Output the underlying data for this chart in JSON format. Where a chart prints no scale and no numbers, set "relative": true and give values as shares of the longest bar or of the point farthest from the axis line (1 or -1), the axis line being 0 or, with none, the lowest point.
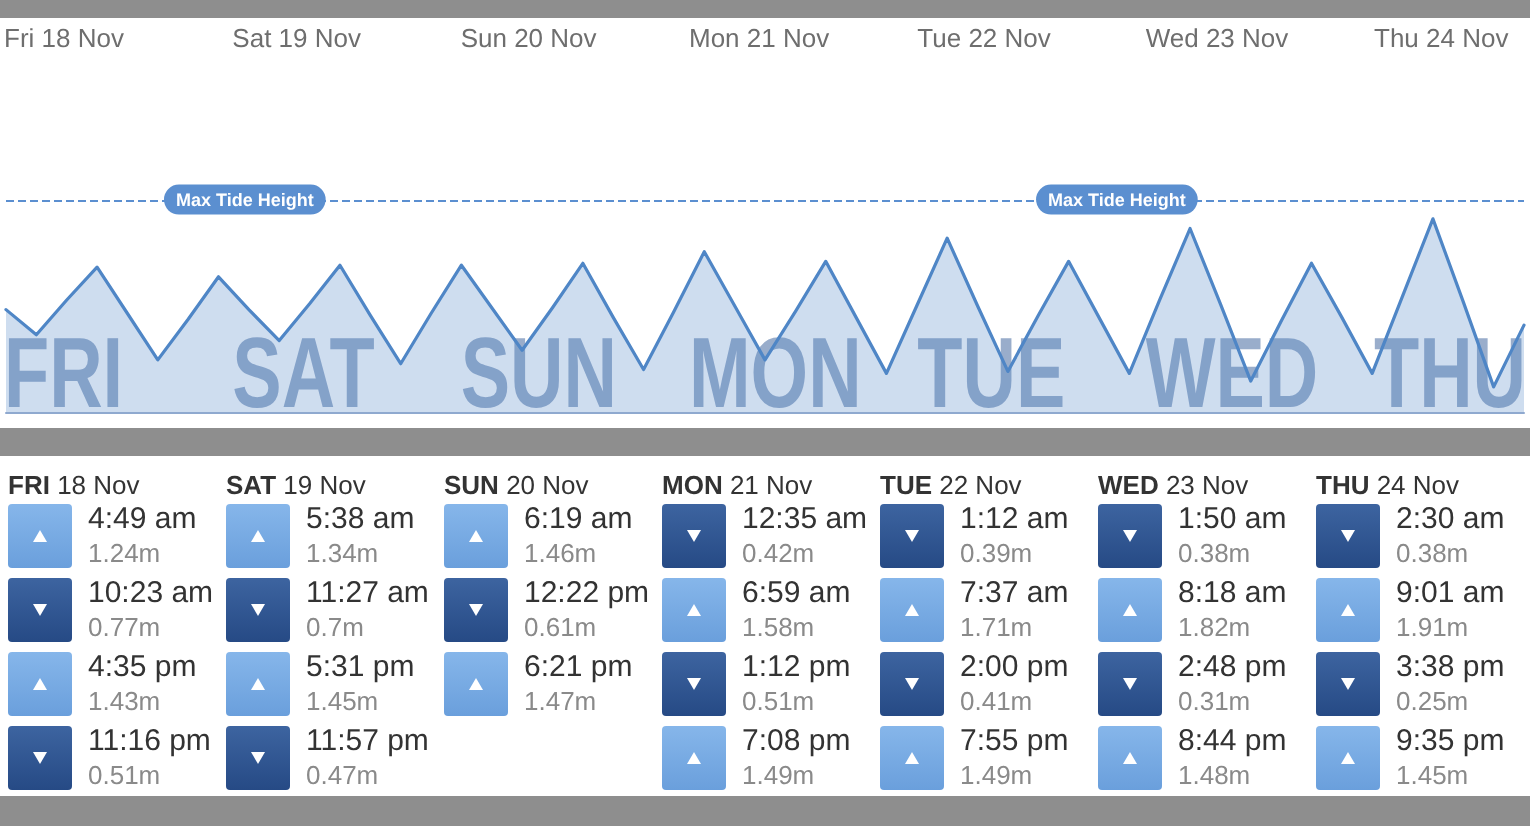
{
  "chart_data": [
    {
      "type": "area",
      "relative": true,
      "categories": [
        null,
        null,
        null,
        null,
        null,
        null,
        null,
        null,
        null,
        null,
        null,
        null,
        null,
        null,
        null,
        null,
        null,
        null,
        null,
        null,
        null,
        null,
        null,
        null,
        null,
        null,
        null,
        null,
        null,
        null,
        null,
        null,
        null,
        null,
        null,
        null,
        null,
        null,
        null,
        null,
        null,
        null,
        null,
        null,
        null,
        null,
        null,
        null,
        null,
        null,
        null
      ],
      "values": [
        0.53,
        0.4,
        0.58,
        0.75,
        0.51,
        0.27,
        0.48,
        0.7,
        0.53,
        0.37,
        0.56,
        0.76,
        0.5,
        0.25,
        0.51,
        0.76,
        0.54,
        0.32,
        0.54,
        0.77,
        0.49,
        0.22,
        0.52,
        0.83,
        0.55,
        0.27,
        0.52,
        0.78,
        0.49,
        0.2,
        0.55,
        0.9,
        0.55,
        0.21,
        0.5,
        0.78,
        0.49,
        0.2,
        0.58,
        0.95,
        0.56,
        0.16,
        0.47,
        0.77,
        0.49,
        0.2,
        0.6,
        1,
        0.57,
        0.13,
        0.45
      ],
      "color": "#4f86c6",
      "marker": "none",
      "ref_lines": [
        {
          "axis": "y",
          "value": 1.1,
          "label": "Max Tide Height",
          "line_style": "dashed",
          "color": "#5b8fd0"
        }
      ],
      "annotations": [
        "Fri 18 Nov",
        "Sat 19 Nov",
        "Sun 20 Nov",
        "Mon 21 Nov",
        "Tue 22 Nov",
        "Wed 23 Nov",
        "Thu 24 Nov",
        "FRI",
        "SAT",
        "SUN",
        "MON",
        "TUE",
        "WED",
        "THU"
      ]
    },
    {
      "type": "other",
      "categories": [
        "4:49 am",
        "10:23 am",
        "4:35 pm",
        "11:16 pm",
        "5:38 am",
        "11:27 am",
        "5:31 pm",
        "11:57 pm",
        "6:19 am",
        "12:22 pm",
        "6:21 pm",
        "12:35 am",
        "6:59 am",
        "1:12 pm",
        "7:08 pm",
        "1:12 am",
        "7:37 am",
        "2:00 pm",
        "7:55 pm",
        "1:50 am",
        "8:18 am",
        "2:48 pm",
        "8:44 pm",
        "2:30 am",
        "9:01 am",
        "3:38 pm",
        "9:35 pm"
      ],
      "series": [
        {
          "name": "FRI 18 Nov",
          "values": [
            1.24,
            0.77,
            1.43,
            0.51,
            null,
            null,
            null,
            null,
            null,
            null,
            null,
            null,
            null,
            null,
            null,
            null,
            null,
            null,
            null,
            null,
            null,
            null,
            null,
            null,
            null,
            null,
            null
          ],
          "value_labels": [
            "1.24m",
            "0.77m",
            "1.43m",
            "0.51m",
            null,
            null,
            null,
            null,
            null,
            null,
            null,
            null,
            null,
            null,
            null,
            null,
            null,
            null,
            null,
            null,
            null,
            null,
            null,
            null,
            null,
            null,
            null
          ]
        },
        {
          "name": "SAT 19 Nov",
          "values": [
            null,
            null,
            null,
            null,
            1.34,
            0.7,
            1.45,
            0.47,
            null,
            null,
            null,
            null,
            null,
            null,
            null,
            null,
            null,
            null,
            null,
            null,
            null,
            null,
            null,
            null,
            null,
            null,
            null
          ],
          "value_labels": [
            null,
            null,
            null,
            null,
            "1.34m",
            "0.7m",
            "1.45m",
            "0.47m",
            null,
            null,
            null,
            null,
            null,
            null,
            null,
            null,
            null,
            null,
            null,
            null,
            null,
            null,
            null,
            null,
            null,
            null,
            null
          ]
        },
        {
          "name": "SUN 20 Nov",
          "values": [
            null,
            null,
            null,
            null,
            null,
            null,
            null,
            null,
            1.46,
            0.61,
            1.47,
            null,
            null,
            null,
            null,
            null,
            null,
            null,
            null,
            null,
            null,
            null,
            null,
            null,
            null,
            null,
            null
          ],
          "value_labels": [
            null,
            null,
            null,
            null,
            null,
            null,
            null,
            null,
            "1.46m",
            "0.61m",
            "1.47m",
            null,
            null,
            null,
            null,
            null,
            null,
            null,
            null,
            null,
            null,
            null,
            null,
            null,
            null,
            null,
            null
          ]
        },
        {
          "name": "MON 21 Nov",
          "values": [
            null,
            null,
            null,
            null,
            null,
            null,
            null,
            null,
            null,
            null,
            null,
            0.42,
            1.58,
            0.51,
            1.49,
            null,
            null,
            null,
            null,
            null,
            null,
            null,
            null,
            null,
            null,
            null,
            null
          ],
          "value_labels": [
            null,
            null,
            null,
            null,
            null,
            null,
            null,
            null,
            null,
            null,
            null,
            "0.42m",
            "1.58m",
            "0.51m",
            "1.49m",
            null,
            null,
            null,
            null,
            null,
            null,
            null,
            null,
            null,
            null,
            null,
            null
          ]
        },
        {
          "name": "TUE 22 Nov",
          "values": [
            null,
            null,
            null,
            null,
            null,
            null,
            null,
            null,
            null,
            null,
            null,
            null,
            null,
            null,
            null,
            0.39,
            1.71,
            0.41,
            1.49,
            null,
            null,
            null,
            null,
            null,
            null,
            null,
            null
          ],
          "value_labels": [
            null,
            null,
            null,
            null,
            null,
            null,
            null,
            null,
            null,
            null,
            null,
            null,
            null,
            null,
            null,
            "0.39m",
            "1.71m",
            "0.41m",
            "1.49m",
            null,
            null,
            null,
            null,
            null,
            null,
            null,
            null
          ]
        },
        {
          "name": "WED 23 Nov",
          "values": [
            null,
            null,
            null,
            null,
            null,
            null,
            null,
            null,
            null,
            null,
            null,
            null,
            null,
            null,
            null,
            null,
            null,
            null,
            null,
            0.38,
            1.82,
            0.31,
            1.48,
            null,
            null,
            null,
            null
          ],
          "value_labels": [
            null,
            null,
            null,
            null,
            null,
            null,
            null,
            null,
            null,
            null,
            null,
            null,
            null,
            null,
            null,
            null,
            null,
            null,
            null,
            "0.38m",
            "1.82m",
            "0.31m",
            "1.48m",
            null,
            null,
            null,
            null
          ]
        },
        {
          "name": "THU 24 Nov",
          "values": [
            null,
            null,
            null,
            null,
            null,
            null,
            null,
            null,
            null,
            null,
            null,
            null,
            null,
            null,
            null,
            null,
            null,
            null,
            null,
            null,
            null,
            null,
            null,
            0.38,
            1.91,
            0.25,
            1.45
          ],
          "value_labels": [
            null,
            null,
            null,
            null,
            null,
            null,
            null,
            null,
            null,
            null,
            null,
            null,
            null,
            null,
            null,
            null,
            null,
            null,
            null,
            null,
            null,
            null,
            null,
            "0.38m",
            "1.91m",
            "0.25m",
            "1.45m"
          ]
        }
      ]
    }
  ]
}
